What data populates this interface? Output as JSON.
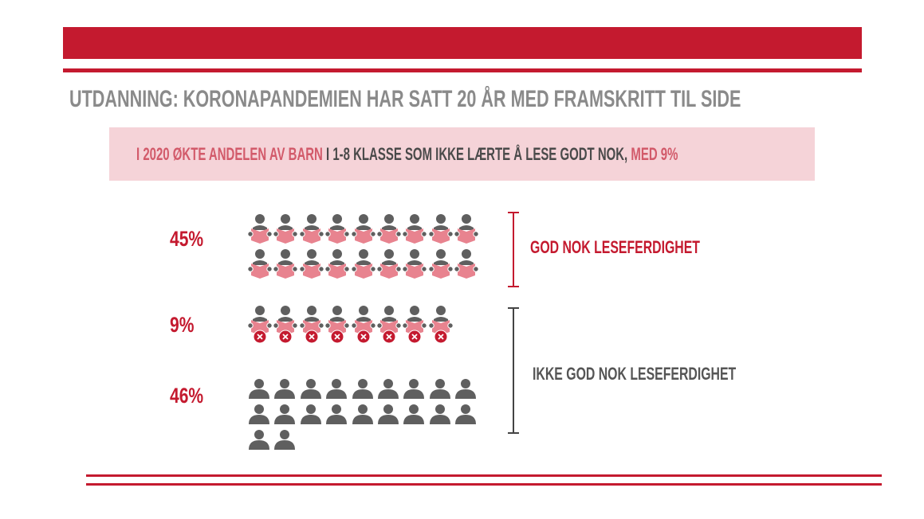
{
  "title": "UTDANNING: KORONAPANDEMIEN HAR SATT 20 ÅR MED FRAMSKRITT TIL SIDE",
  "subtitle": {
    "part1": "I 2020 ØKTE ANDELEN AV BARN",
    "part2": " I 1-8 KLASSE SOM IKKE LÆRTE Å LESE GODT NOK, ",
    "part3": "MED 9%"
  },
  "groups": [
    {
      "percent": "45%",
      "icon": "reading-person-icon",
      "count": 18
    },
    {
      "percent": "9%",
      "icon": "reading-person-failed-icon",
      "count": 8
    },
    {
      "percent": "46%",
      "icon": "person-icon",
      "count": 20
    }
  ],
  "labels": {
    "good": "GOD NOK LESEFERDIGHET",
    "not_good": "IKKE GOD NOK LESEFERDIGHET"
  },
  "colors": {
    "red": "#c41a2f",
    "pink": "#e8838f",
    "gray": "#5f5f5f",
    "box": "#f5d3d8"
  }
}
